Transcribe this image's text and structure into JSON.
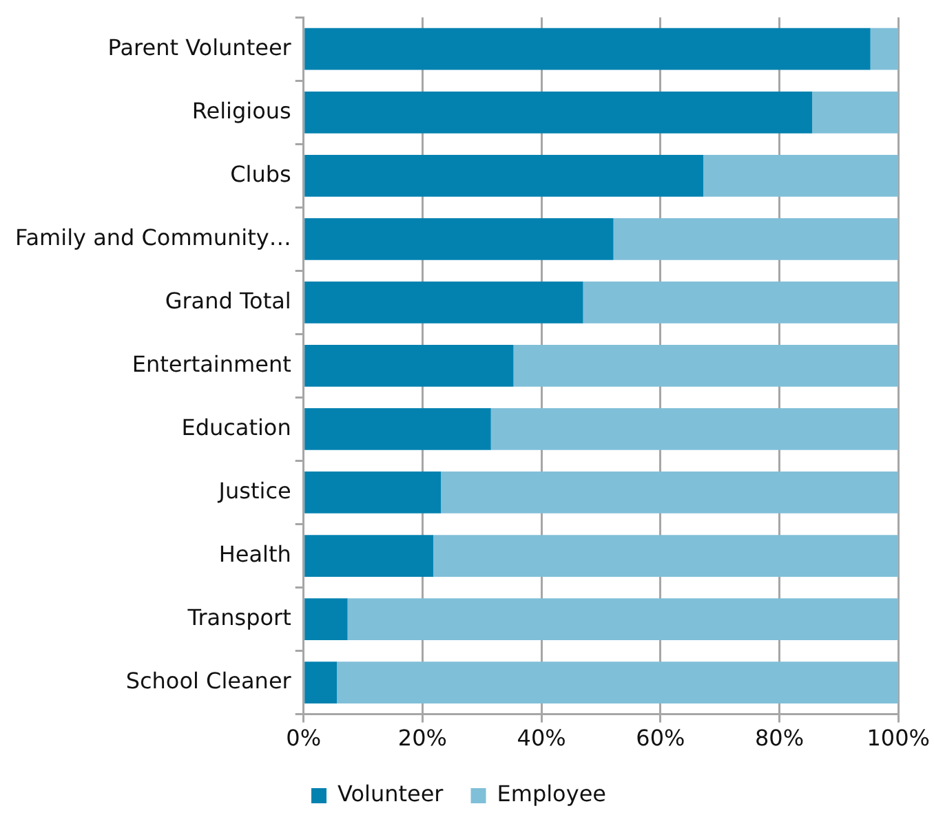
{
  "chart_data": {
    "type": "bar",
    "orientation": "horizontal",
    "stacked": true,
    "categories": [
      "Parent Volunteer",
      "Religious",
      "Clubs",
      "Family and Community…",
      "Grand Total",
      "Entertainment",
      "Education",
      "Justice",
      "Health",
      "Transport",
      "School Cleaner"
    ],
    "series": [
      {
        "name": "Volunteer",
        "color": "#0382b0",
        "values": [
          95.3,
          85.5,
          67.2,
          52.1,
          47,
          35.3,
          31.5,
          23.1,
          21.8,
          7.4,
          5.6
        ]
      },
      {
        "name": "Employee",
        "color": "#80bfd8",
        "values": [
          4.7,
          14.5,
          32.8,
          47.9,
          53,
          64.7,
          68.5,
          76.9,
          78.2,
          92.6,
          94.4
        ]
      }
    ],
    "xlim": [
      0,
      100
    ],
    "xticks": [
      {
        "value": 0,
        "label": "0%"
      },
      {
        "value": 20,
        "label": "20%"
      },
      {
        "value": 40,
        "label": "40%"
      },
      {
        "value": 60,
        "label": "60%"
      },
      {
        "value": 80,
        "label": "80%"
      },
      {
        "value": 100,
        "label": "100%"
      }
    ],
    "grid": "x",
    "legend": "bottom"
  }
}
